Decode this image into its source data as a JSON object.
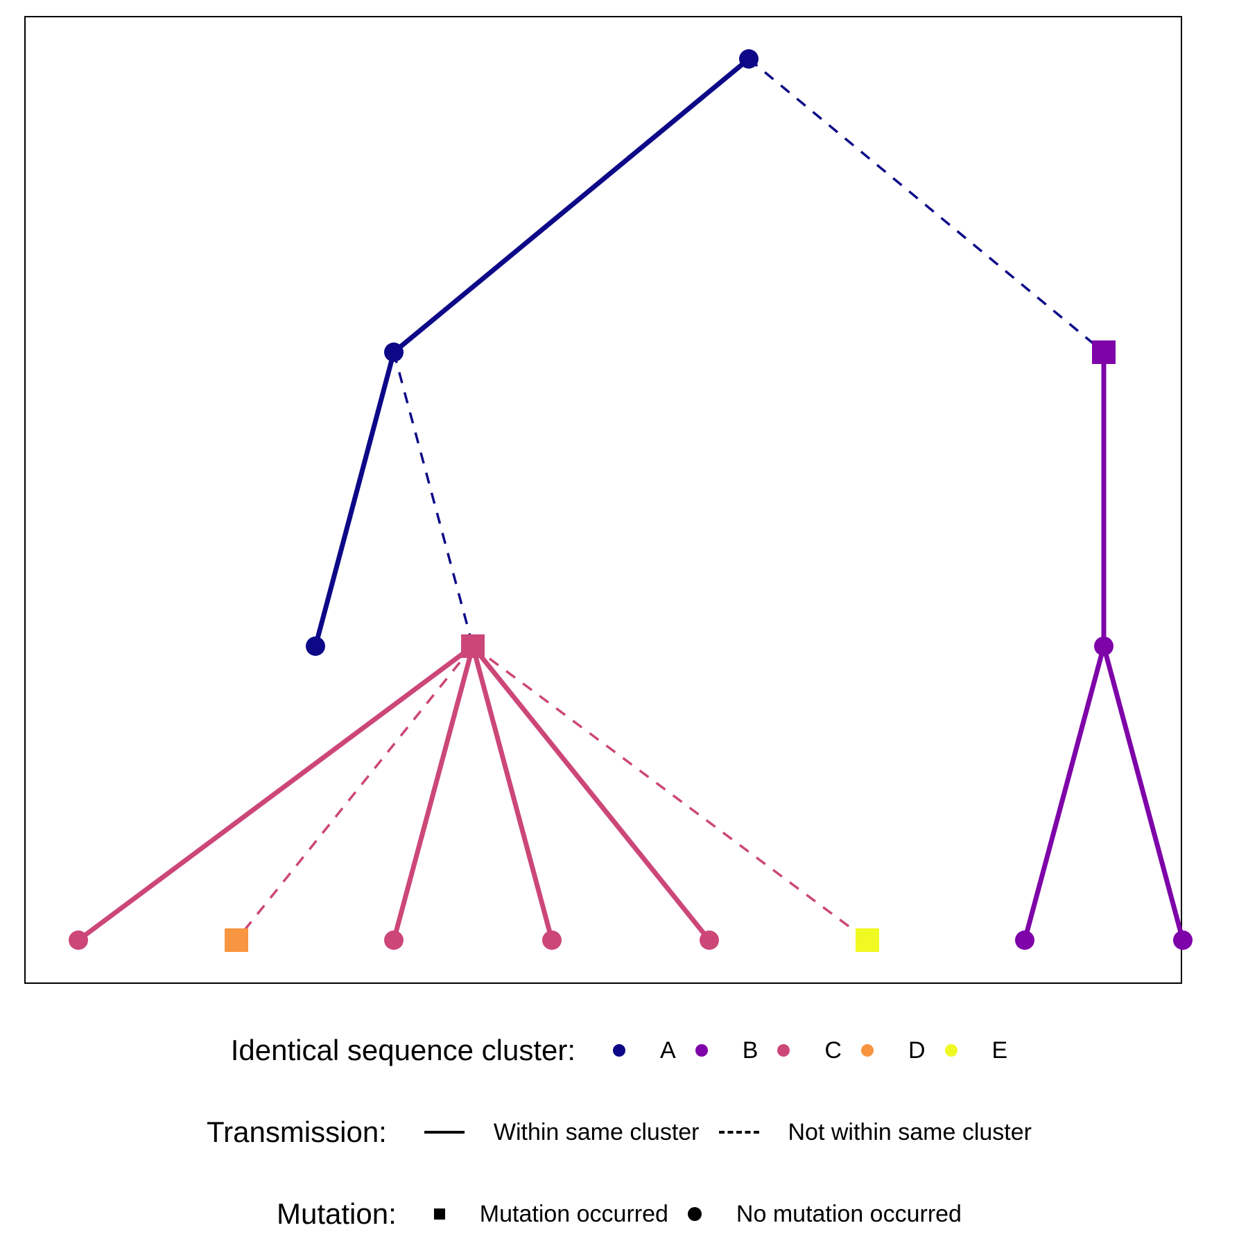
{
  "colors": {
    "A": "#0d0887",
    "B": "#7e03a8",
    "C": "#cc4778",
    "D": "#f89540",
    "E": "#f0f921"
  },
  "tree": {
    "nodes": [
      {
        "id": "n1",
        "cluster": "A",
        "mutation": false
      },
      {
        "id": "n2",
        "cluster": "A",
        "mutation": false
      },
      {
        "id": "n3",
        "cluster": "B",
        "mutation": true
      },
      {
        "id": "n4",
        "cluster": "A",
        "mutation": false
      },
      {
        "id": "n5",
        "cluster": "C",
        "mutation": true
      },
      {
        "id": "n6",
        "cluster": "B",
        "mutation": false
      },
      {
        "id": "n7",
        "cluster": "C",
        "mutation": false
      },
      {
        "id": "n8",
        "cluster": "D",
        "mutation": true
      },
      {
        "id": "n9",
        "cluster": "C",
        "mutation": false
      },
      {
        "id": "n10",
        "cluster": "C",
        "mutation": false
      },
      {
        "id": "n11",
        "cluster": "C",
        "mutation": false
      },
      {
        "id": "n12",
        "cluster": "E",
        "mutation": true
      },
      {
        "id": "n13",
        "cluster": "B",
        "mutation": false
      },
      {
        "id": "n14",
        "cluster": "B",
        "mutation": false
      }
    ],
    "edges": [
      {
        "from": "n1",
        "to": "n2",
        "same_cluster": true
      },
      {
        "from": "n1",
        "to": "n3",
        "same_cluster": false
      },
      {
        "from": "n2",
        "to": "n4",
        "same_cluster": true
      },
      {
        "from": "n2",
        "to": "n5",
        "same_cluster": false
      },
      {
        "from": "n3",
        "to": "n6",
        "same_cluster": true
      },
      {
        "from": "n5",
        "to": "n7",
        "same_cluster": true
      },
      {
        "from": "n5",
        "to": "n8",
        "same_cluster": false
      },
      {
        "from": "n5",
        "to": "n9",
        "same_cluster": true
      },
      {
        "from": "n5",
        "to": "n10",
        "same_cluster": true
      },
      {
        "from": "n5",
        "to": "n11",
        "same_cluster": true
      },
      {
        "from": "n5",
        "to": "n12",
        "same_cluster": false
      },
      {
        "from": "n6",
        "to": "n13",
        "same_cluster": true
      },
      {
        "from": "n6",
        "to": "n14",
        "same_cluster": true
      }
    ]
  },
  "legend": {
    "cluster": {
      "title": "Identical sequence cluster:",
      "items": [
        {
          "label": "A",
          "key": "A"
        },
        {
          "label": "B",
          "key": "B"
        },
        {
          "label": "C",
          "key": "C"
        },
        {
          "label": "D",
          "key": "D"
        },
        {
          "label": "E",
          "key": "E"
        }
      ]
    },
    "transmission": {
      "title": "Transmission:",
      "solid_label": "Within same cluster",
      "dashed_label": "Not within same cluster"
    },
    "mutation": {
      "title": "Mutation:",
      "square_label": "Mutation occurred",
      "circle_label": "No mutation occurred"
    }
  }
}
